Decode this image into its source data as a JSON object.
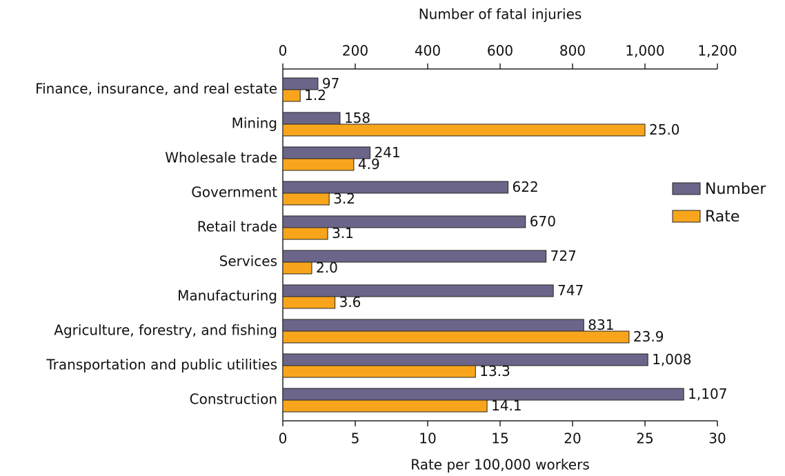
{
  "chart_data": {
    "type": "bar",
    "orientation": "horizontal",
    "x2label": "Number of fatal injuries",
    "xlabel": "Rate per 100,000 workers",
    "categories": [
      "Finance, insurance, and real estate",
      "Mining",
      "Wholesale trade",
      "Government",
      "Retail trade",
      "Services",
      "Manufacturing",
      "Agriculture, forestry, and fishing",
      "Transportation and public utilities",
      "Construction"
    ],
    "series": [
      {
        "name": "Number",
        "color": "#6b6589",
        "axis": "x2",
        "values": [
          97,
          158,
          241,
          622,
          670,
          727,
          747,
          831,
          1008,
          1107
        ],
        "value_labels": [
          "97",
          "158",
          "241",
          "622",
          "670",
          "727",
          "747",
          "831",
          "1,008",
          "1,107"
        ]
      },
      {
        "name": "Rate",
        "color": "#f9a51b",
        "axis": "x",
        "values": [
          1.2,
          25.0,
          4.9,
          3.2,
          3.1,
          2.0,
          3.6,
          23.9,
          13.3,
          14.1
        ],
        "value_labels": [
          "1.2",
          "25.0",
          "4.9",
          "3.2",
          "3.1",
          "2.0",
          "3.6",
          "23.9",
          "13.3",
          "14.1"
        ]
      }
    ],
    "xlim": [
      0,
      30
    ],
    "xticks": [
      0,
      5,
      10,
      15,
      20,
      25,
      30
    ],
    "x2lim": [
      0,
      1200
    ],
    "x2ticks": [
      0,
      200,
      400,
      600,
      800,
      {
        "value": 1000,
        "label": "1,000"
      },
      {
        "value": 1200,
        "label": "1,200"
      }
    ],
    "legend": "right"
  }
}
